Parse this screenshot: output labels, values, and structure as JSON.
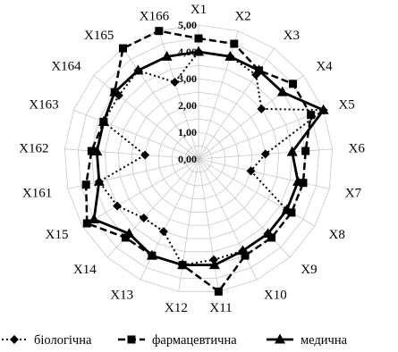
{
  "chart_data": {
    "type": "radar",
    "axes": [
      "X1",
      "X2",
      "X3",
      "X4",
      "X5",
      "X6",
      "X7",
      "X8",
      "X9",
      "X10",
      "X11",
      "X12",
      "X13",
      "X14",
      "X15",
      "X161",
      "X162",
      "X163",
      "X164",
      "X165",
      "X166"
    ],
    "rlim": [
      0,
      5
    ],
    "r_ticks": [
      "0,00",
      "1,00",
      "2,00",
      "3,00",
      "4,00",
      "5,00"
    ],
    "series": [
      {
        "name": "біологічна",
        "marker": "diamond",
        "line": "dotted",
        "color": "#000000",
        "values": [
          4.0,
          4.0,
          3.8,
          3.0,
          5.0,
          2.5,
          2.0,
          3.8,
          3.8,
          3.8,
          3.8,
          4.0,
          3.0,
          3.0,
          3.5,
          3.8,
          2.0,
          3.8,
          3.8,
          4.0,
          3.0
        ]
      },
      {
        "name": "фармацевтична",
        "marker": "square",
        "line": "dashed",
        "color": "#000000",
        "values": [
          4.5,
          4.5,
          4.0,
          4.5,
          4.5,
          4.0,
          4.0,
          4.0,
          4.0,
          4.0,
          5.0,
          4.0,
          4.0,
          4.0,
          4.8,
          4.3,
          4.0,
          3.8,
          4.0,
          5.0,
          5.0
        ]
      },
      {
        "name": "медична",
        "marker": "triangle",
        "line": "solid",
        "color": "#000000",
        "values": [
          4.0,
          4.0,
          4.0,
          4.0,
          5.0,
          3.5,
          3.8,
          3.8,
          3.8,
          3.8,
          4.0,
          4.0,
          4.0,
          3.8,
          4.5,
          3.8,
          3.8,
          3.8,
          4.0,
          4.0,
          4.0
        ]
      }
    ],
    "legend_position": "bottom",
    "grid": true
  }
}
